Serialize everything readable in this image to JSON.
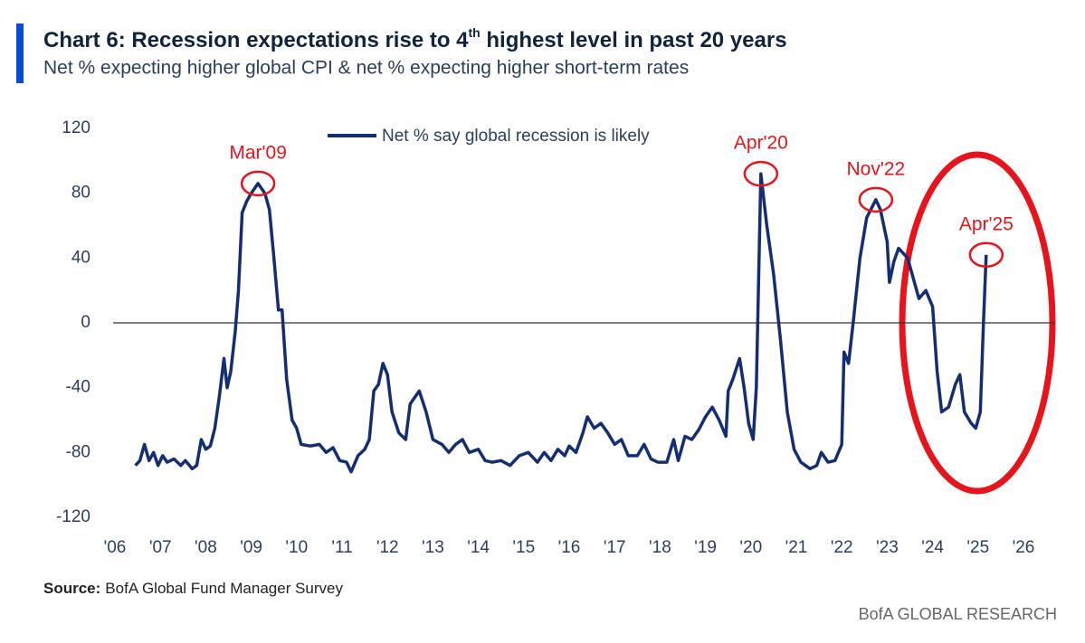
{
  "chart_data": {
    "type": "line",
    "title": {
      "before": "Chart 6: Recession expectations rise to 4",
      "sup": "th",
      "after": " highest level in past 20 years"
    },
    "subtitle": "Net % expecting higher global CPI & net % expecting higher short-term rates",
    "source_label": "Source:",
    "source": "BofA Global Fund Manager Survey",
    "brand": "BofA GLOBAL RESEARCH",
    "xlim": [
      2006,
      2026.7
    ],
    "ylim": [
      -120,
      120
    ],
    "xticks": [
      {
        "value": 2006,
        "label": "'06"
      },
      {
        "value": 2007,
        "label": "'07"
      },
      {
        "value": 2008,
        "label": "'08"
      },
      {
        "value": 2009,
        "label": "'09"
      },
      {
        "value": 2010,
        "label": "'10"
      },
      {
        "value": 2011,
        "label": "'11"
      },
      {
        "value": 2012,
        "label": "'12"
      },
      {
        "value": 2013,
        "label": "'13"
      },
      {
        "value": 2014,
        "label": "'14"
      },
      {
        "value": 2015,
        "label": "'15"
      },
      {
        "value": 2016,
        "label": "'16"
      },
      {
        "value": 2017,
        "label": "'17"
      },
      {
        "value": 2018,
        "label": "'18"
      },
      {
        "value": 2019,
        "label": "'19"
      },
      {
        "value": 2020,
        "label": "'20"
      },
      {
        "value": 2021,
        "label": "'21"
      },
      {
        "value": 2022,
        "label": "'22"
      },
      {
        "value": 2023,
        "label": "'23"
      },
      {
        "value": 2024,
        "label": "'24"
      },
      {
        "value": 2025,
        "label": "'25"
      },
      {
        "value": 2026,
        "label": "'26"
      }
    ],
    "yticks": [
      120,
      80,
      40,
      0,
      -40,
      -80,
      -120
    ],
    "x": [
      2006.45,
      2006.55,
      2006.65,
      2006.75,
      2006.85,
      2006.95,
      2007.05,
      2007.15,
      2007.3,
      2007.45,
      2007.55,
      2007.7,
      2007.8,
      2007.9,
      2008.0,
      2008.1,
      2008.2,
      2008.3,
      2008.4,
      2008.47,
      2008.55,
      2008.65,
      2008.72,
      2008.8,
      2008.9,
      2009.0,
      2009.15,
      2009.3,
      2009.4,
      2009.5,
      2009.6,
      2009.68,
      2009.78,
      2009.9,
      2010.0,
      2010.1,
      2010.3,
      2010.5,
      2010.65,
      2010.8,
      2010.95,
      2011.1,
      2011.2,
      2011.35,
      2011.5,
      2011.6,
      2011.7,
      2011.8,
      2011.9,
      2012.0,
      2012.1,
      2012.25,
      2012.4,
      2012.5,
      2012.7,
      2012.85,
      2013.0,
      2013.2,
      2013.35,
      2013.5,
      2013.65,
      2013.8,
      2014.0,
      2014.15,
      2014.3,
      2014.5,
      2014.7,
      2014.9,
      2015.1,
      2015.3,
      2015.45,
      2015.6,
      2015.75,
      2015.9,
      2016.0,
      2016.15,
      2016.3,
      2016.4,
      2016.55,
      2016.7,
      2016.85,
      2017.0,
      2017.15,
      2017.3,
      2017.5,
      2017.65,
      2017.8,
      2017.95,
      2018.15,
      2018.3,
      2018.4,
      2018.55,
      2018.7,
      2018.85,
      2019.0,
      2019.15,
      2019.3,
      2019.45,
      2019.5,
      2019.6,
      2019.75,
      2019.85,
      2019.95,
      2020.05,
      2020.12,
      2020.22,
      2020.35,
      2020.5,
      2020.65,
      2020.8,
      2020.95,
      2021.1,
      2021.3,
      2021.45,
      2021.55,
      2021.7,
      2021.85,
      2022.0,
      2022.05,
      2022.15,
      2022.25,
      2022.4,
      2022.55,
      2022.75,
      2022.85,
      2023.0,
      2023.05,
      2023.15,
      2023.25,
      2023.45,
      2023.55,
      2023.7,
      2023.85,
      2024.0,
      2024.1,
      2024.2,
      2024.35,
      2024.5,
      2024.6,
      2024.7,
      2024.85,
      2024.95,
      2025.05,
      2025.12,
      2025.18
    ],
    "series": [
      {
        "name": "Net % say global recession is likely",
        "color": "#142e73",
        "values": [
          -88,
          -85,
          -75,
          -85,
          -80,
          -88,
          -82,
          -86,
          -84,
          -88,
          -85,
          -90,
          -88,
          -72,
          -78,
          -76,
          -65,
          -45,
          -22,
          -40,
          -30,
          -5,
          20,
          68,
          75,
          80,
          86,
          80,
          70,
          40,
          8,
          8,
          -35,
          -60,
          -65,
          -75,
          -76,
          -75,
          -80,
          -77,
          -85,
          -86,
          -92,
          -82,
          -78,
          -72,
          -42,
          -38,
          -25,
          -32,
          -55,
          -68,
          -72,
          -50,
          -42,
          -55,
          -72,
          -75,
          -80,
          -75,
          -72,
          -80,
          -78,
          -85,
          -86,
          -85,
          -88,
          -82,
          -80,
          -86,
          -80,
          -85,
          -78,
          -82,
          -76,
          -80,
          -68,
          -58,
          -65,
          -62,
          -68,
          -75,
          -72,
          -82,
          -82,
          -75,
          -84,
          -86,
          -86,
          -72,
          -85,
          -70,
          -72,
          -66,
          -58,
          -52,
          -60,
          -70,
          -42,
          -35,
          -22,
          -40,
          -62,
          -72,
          -40,
          92,
          60,
          30,
          -10,
          -55,
          -78,
          -86,
          -90,
          -88,
          -80,
          -86,
          -85,
          -75,
          -18,
          -25,
          0,
          40,
          65,
          76,
          70,
          50,
          25,
          38,
          46,
          40,
          30,
          15,
          20,
          10,
          -30,
          -55,
          -52,
          -38,
          -32,
          -55,
          -62,
          -65,
          -55,
          0,
          42
        ]
      }
    ],
    "annotations": [
      {
        "text": "Mar'09",
        "x": 2009.15,
        "y": 86
      },
      {
        "text": "Apr'20",
        "x": 2020.22,
        "y": 92
      },
      {
        "text": "Nov'22",
        "x": 2022.75,
        "y": 76
      },
      {
        "text": "Apr'25",
        "x": 2025.18,
        "y": 42
      }
    ]
  }
}
